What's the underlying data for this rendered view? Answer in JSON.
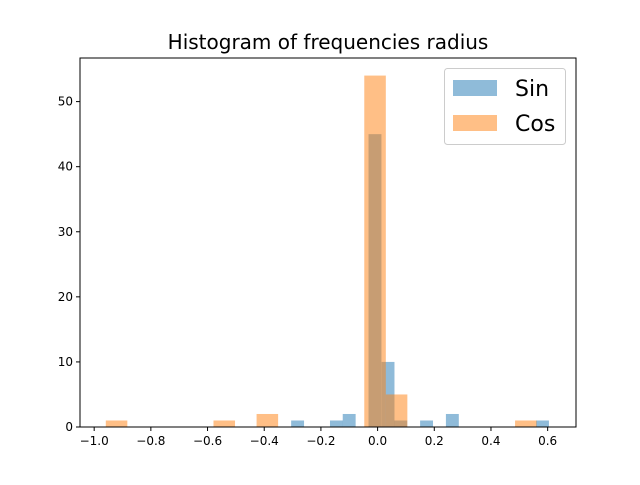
{
  "chart_data": {
    "type": "bar",
    "title": "Histogram of frequencies radius",
    "xlabel": "",
    "ylabel": "",
    "xlim": [
      -1.05,
      0.7
    ],
    "ylim": [
      0,
      56.7
    ],
    "xticks": [
      -1.0,
      -0.8,
      -0.6,
      -0.4,
      -0.2,
      0.0,
      0.2,
      0.4,
      0.6
    ],
    "xtick_labels": [
      "−1.0",
      "−0.8",
      "−0.6",
      "−0.4",
      "−0.2",
      "0.0",
      "0.2",
      "0.4",
      "0.6"
    ],
    "yticks": [
      0,
      10,
      20,
      30,
      40,
      50
    ],
    "ytick_labels": [
      "0",
      "10",
      "20",
      "30",
      "40",
      "50"
    ],
    "grid": false,
    "legend": "top-right",
    "series": [
      {
        "name": "Sin",
        "color": "#1f77b4",
        "opacity": 0.5,
        "bin_width": 0.0455,
        "bins": [
          {
            "x": -0.305,
            "count": 1
          },
          {
            "x": -0.168,
            "count": 1
          },
          {
            "x": -0.123,
            "count": 2
          },
          {
            "x": -0.032,
            "count": 45
          },
          {
            "x": 0.014,
            "count": 10
          },
          {
            "x": 0.059,
            "count": 1
          },
          {
            "x": 0.15,
            "count": 1
          },
          {
            "x": 0.241,
            "count": 2
          },
          {
            "x": 0.559,
            "count": 1
          }
        ]
      },
      {
        "name": "Cos",
        "color": "#ff7f0e",
        "opacity": 0.5,
        "bin_width": 0.076,
        "bins": [
          {
            "x": -0.959,
            "count": 1
          },
          {
            "x": -0.579,
            "count": 1
          },
          {
            "x": -0.427,
            "count": 2
          },
          {
            "x": -0.047,
            "count": 54
          },
          {
            "x": 0.029,
            "count": 5
          },
          {
            "x": 0.485,
            "count": 1
          }
        ]
      }
    ]
  }
}
